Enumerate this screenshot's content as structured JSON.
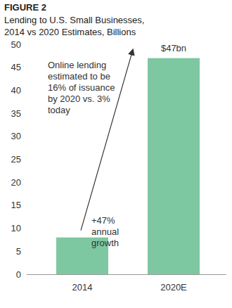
{
  "chart_data": {
    "type": "bar",
    "title": "FIGURE 2",
    "subtitle": "Lending to U.S. Small Businesses, 2014 vs 2020 Estimates, Billions",
    "categories": [
      "2014",
      "2020E"
    ],
    "values": [
      8,
      47
    ],
    "color": "#7dc8a0",
    "ylim": [
      0,
      50
    ],
    "yticks": [
      0,
      5,
      10,
      15,
      20,
      25,
      30,
      35,
      40,
      45,
      50
    ],
    "grid": false,
    "annotations": [
      "$47bn",
      "Online lending estimated to be 16% of issuance by 2020 vs. 3% today",
      "+47% annual growth"
    ]
  }
}
